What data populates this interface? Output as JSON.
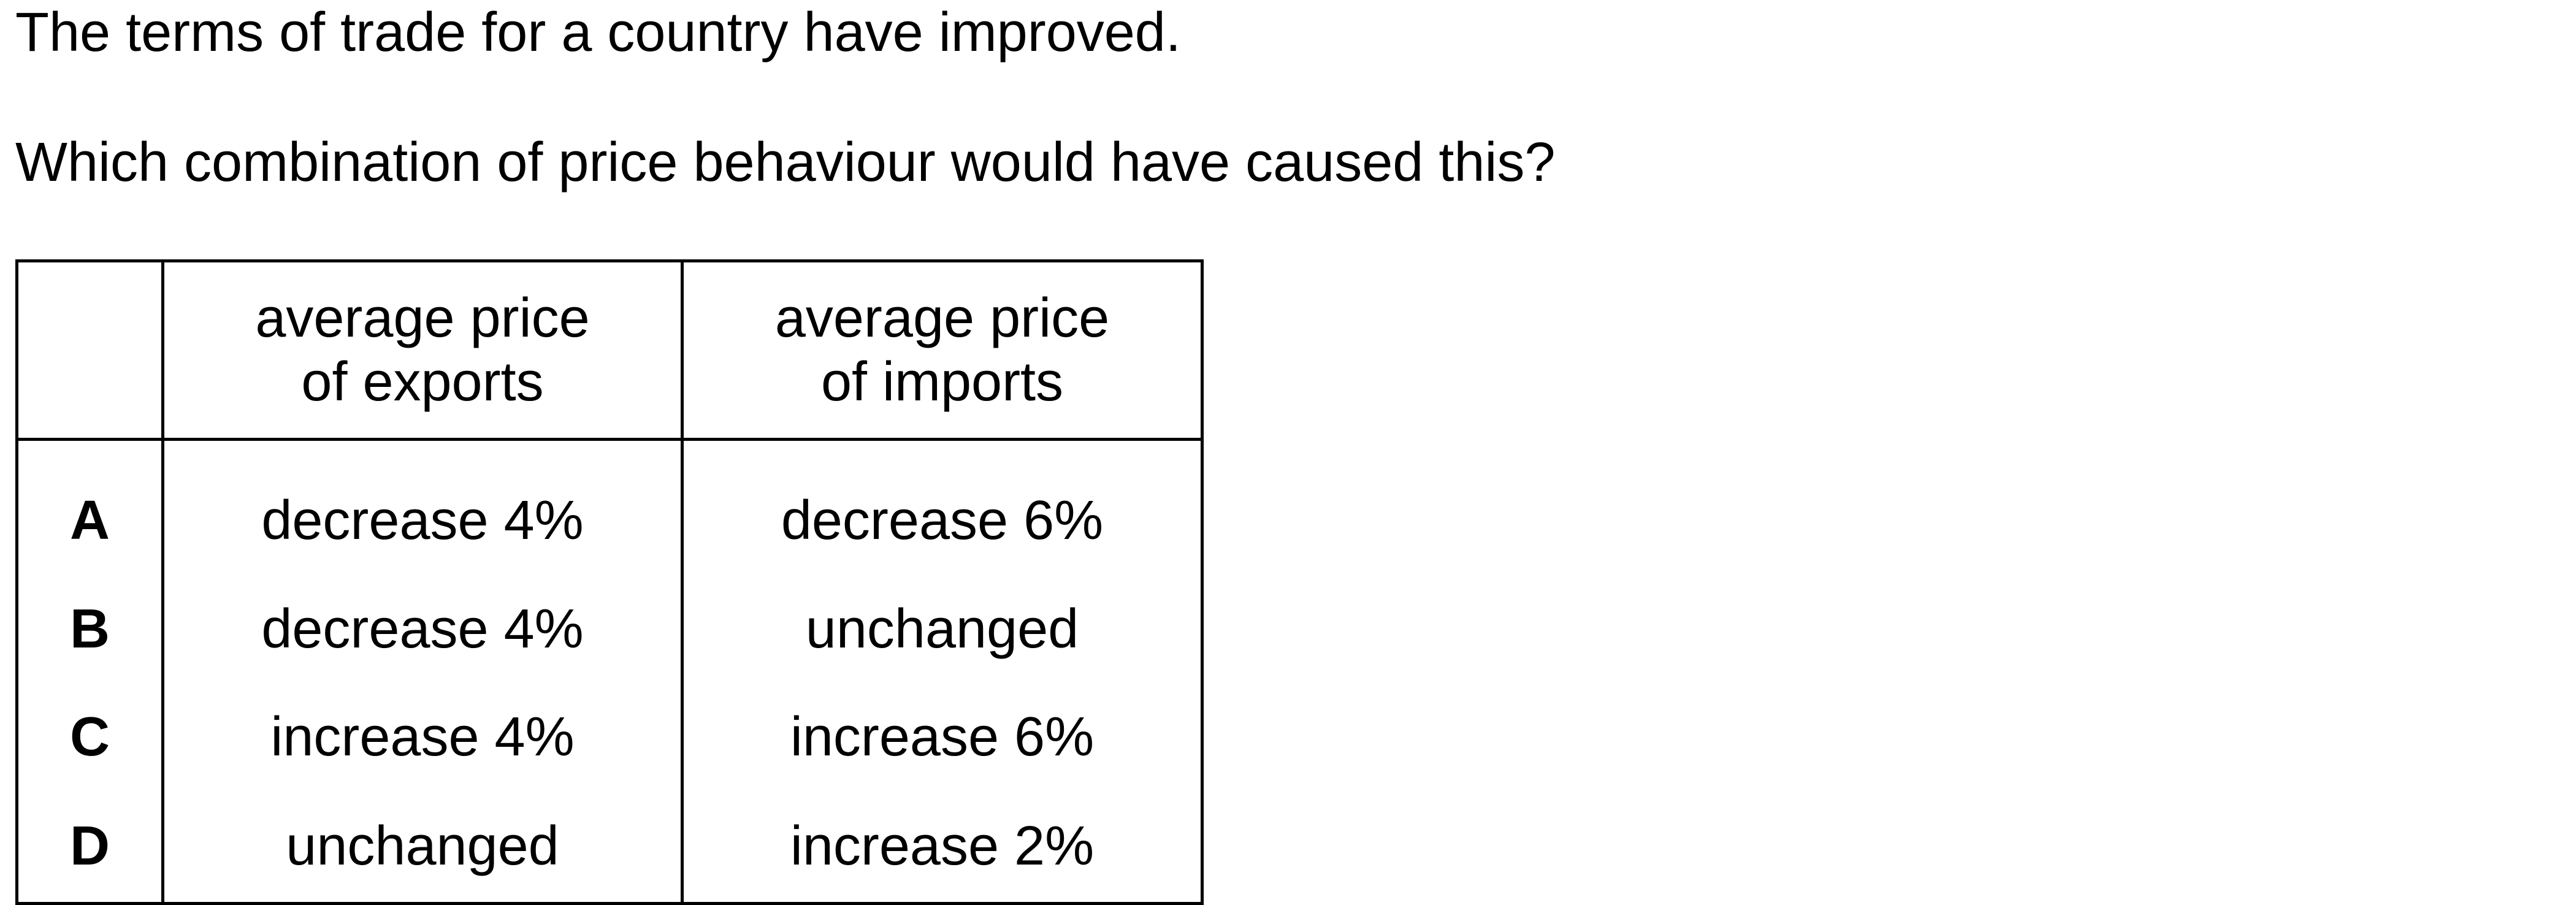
{
  "stem": "The terms of trade for a country have improved.",
  "question": "Which combination of price behaviour would have caused this?",
  "table": {
    "headers": {
      "key": "",
      "exports": [
        "average price",
        "of exports"
      ],
      "imports": [
        "average price",
        "of imports"
      ]
    },
    "rows": [
      {
        "key": "A",
        "exports": "decrease 4%",
        "imports": "decrease 6%"
      },
      {
        "key": "B",
        "exports": "decrease 4%",
        "imports": "unchanged"
      },
      {
        "key": "C",
        "exports": "increase 4%",
        "imports": "increase 6%"
      },
      {
        "key": "D",
        "exports": "unchanged",
        "imports": "increase 2%"
      }
    ]
  }
}
